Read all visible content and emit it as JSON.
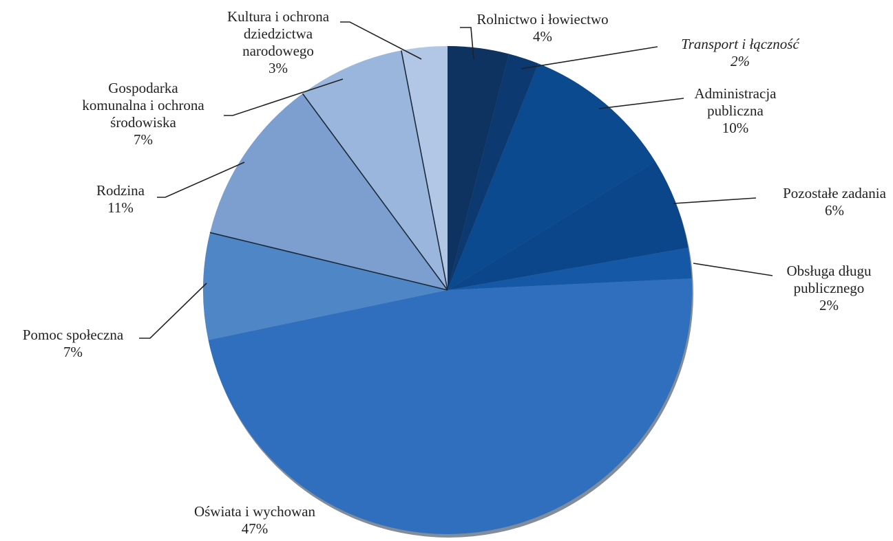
{
  "chart_data": {
    "type": "pie",
    "title": "",
    "legend": "none",
    "slices": [
      {
        "label": "Rolnictwo i łowiectwo",
        "lines": [
          "Rolnictwo i łowiectwo"
        ],
        "value": 4,
        "value_label": "4%",
        "color": "#0e3360"
      },
      {
        "label": "Transport i łączność",
        "lines": [
          "Transport i łączność"
        ],
        "value": 2,
        "value_label": "2%",
        "color": "#0c3970",
        "italic": true
      },
      {
        "label": "Administracja publiczna",
        "lines": [
          "Administracja",
          "publiczna"
        ],
        "value": 10,
        "value_label": "10%",
        "color": "#0b4a8e"
      },
      {
        "label": "Pozostałe zadania",
        "lines": [
          "Pozostałe zadania"
        ],
        "value": 6,
        "value_label": "6%",
        "color": "#0a4689"
      },
      {
        "label": "Obsługa długu publicznego",
        "lines": [
          "Obsługa długu",
          "publicznego"
        ],
        "value": 2,
        "value_label": "2%",
        "color": "#1558a6"
      },
      {
        "label": "Oświata i wychowanie",
        "lines": [
          "Oświata i wychowan"
        ],
        "value": 47,
        "value_label": "47%",
        "color": "#2f6fbe"
      },
      {
        "label": "Pomoc społeczna",
        "lines": [
          "Pomoc społeczna"
        ],
        "value": 7,
        "value_label": "7%",
        "color": "#4f86c6"
      },
      {
        "label": "Rodzina",
        "lines": [
          "Rodzina"
        ],
        "value": 11,
        "value_label": "11%",
        "color": "#7c9fcf"
      },
      {
        "label": "Gospodarka komunalna i ochrona środowiska",
        "lines": [
          "Gospodarka",
          "komunalna i ochrona",
          "środowiska"
        ],
        "value": 7,
        "value_label": "7%",
        "color": "#9bb6dc"
      },
      {
        "label": "Kultura i ochrona dziedzictwa narodowego",
        "lines": [
          "Kultura i ochrona",
          "dziedzictwa",
          "narodowego"
        ],
        "value": 3,
        "value_label": "3%",
        "color": "#b2c7e6"
      }
    ]
  }
}
